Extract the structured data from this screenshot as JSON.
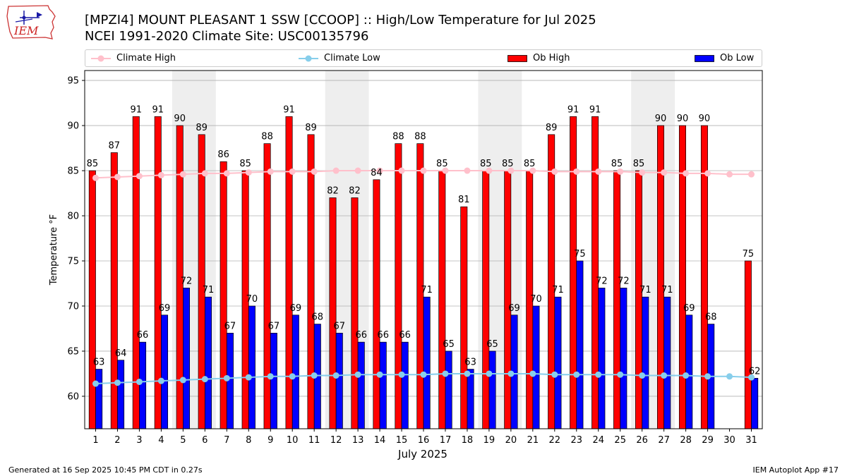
{
  "header": {
    "title_line1": "[MPZI4] MOUNT PLEASANT 1 SSW [CCOOP] :: High/Low Temperature for Jul 2025",
    "title_line2": "NCEI 1991-2020 Climate Site: USC00135796"
  },
  "logo": {
    "text": "IEM"
  },
  "footer": {
    "generated": "Generated at 16 Sep 2025 10:45 PM CDT in 0.27s",
    "app": "IEM Autoplot App #17"
  },
  "colors": {
    "ob_high": "#ff0000",
    "ob_low": "#0000ff",
    "climate_high": "#ffc0cb",
    "climate_low": "#87ceeb",
    "weekend_shade": "#eeeeee",
    "grid": "#b0b0b0"
  },
  "chart_data": {
    "type": "bar",
    "xlabel": "July 2025",
    "ylabel": "Temperature °F",
    "ylim": [
      56.4,
      96.1
    ],
    "yticks": [
      60,
      65,
      70,
      75,
      80,
      85,
      90,
      95
    ],
    "grid": "horizontal",
    "legend_position": "top",
    "categories": [
      "1",
      "2",
      "3",
      "4",
      "5",
      "6",
      "7",
      "8",
      "9",
      "10",
      "11",
      "12",
      "13",
      "14",
      "15",
      "16",
      "17",
      "18",
      "19",
      "20",
      "21",
      "22",
      "23",
      "24",
      "25",
      "26",
      "27",
      "28",
      "29",
      "30",
      "31"
    ],
    "shaded_day_ranges": [
      [
        5,
        6
      ],
      [
        12,
        13
      ],
      [
        19,
        20
      ],
      [
        26,
        27
      ]
    ],
    "series": [
      {
        "name": "Ob High",
        "kind": "bar",
        "values": [
          85,
          87,
          91,
          91,
          90,
          89,
          86,
          85,
          88,
          91,
          89,
          82,
          82,
          84,
          88,
          88,
          85,
          81,
          85,
          85,
          85,
          89,
          91,
          91,
          85,
          85,
          90,
          90,
          90,
          null,
          75
        ],
        "labels": [
          "85",
          "87",
          "91",
          "91",
          "90",
          "89",
          "86",
          "85",
          "88",
          "91",
          "89",
          "82",
          "82",
          "84",
          "88",
          "88",
          "85",
          "81",
          "85",
          "85",
          "85",
          "89",
          "91",
          "91",
          "85",
          "85",
          "90",
          "90",
          "90",
          "",
          "75"
        ]
      },
      {
        "name": "Ob Low",
        "kind": "bar",
        "values": [
          63,
          64,
          66,
          69,
          72,
          71,
          67,
          70,
          67,
          69,
          68,
          67,
          66,
          66,
          66,
          71,
          65,
          63,
          65,
          69,
          70,
          71,
          75,
          72,
          72,
          71,
          71,
          69,
          68,
          null,
          62
        ],
        "labels": [
          "63",
          "64",
          "66",
          "69",
          "72",
          "71",
          "67",
          "70",
          "67",
          "69",
          "68",
          "67",
          "66",
          "66",
          "66",
          "71",
          "65",
          "63",
          "65",
          "69",
          "70",
          "71",
          "75",
          "72",
          "72",
          "71",
          "71",
          "69",
          "68",
          "",
          "62"
        ]
      },
      {
        "name": "Climate High",
        "kind": "line",
        "values": [
          84.2,
          84.3,
          84.4,
          84.5,
          84.6,
          84.7,
          84.7,
          84.8,
          84.9,
          84.9,
          84.9,
          85.0,
          85.0,
          85.0,
          85.0,
          85.0,
          85.0,
          85.0,
          85.0,
          85.0,
          85.0,
          84.9,
          84.9,
          84.9,
          84.9,
          84.8,
          84.8,
          84.7,
          84.7,
          84.6,
          84.6
        ]
      },
      {
        "name": "Climate Low",
        "kind": "line",
        "values": [
          61.4,
          61.5,
          61.6,
          61.7,
          61.8,
          61.9,
          62.0,
          62.1,
          62.2,
          62.2,
          62.3,
          62.3,
          62.4,
          62.4,
          62.4,
          62.4,
          62.5,
          62.5,
          62.5,
          62.5,
          62.5,
          62.4,
          62.4,
          62.4,
          62.4,
          62.3,
          62.3,
          62.3,
          62.2,
          62.2,
          62.1
        ]
      }
    ]
  }
}
